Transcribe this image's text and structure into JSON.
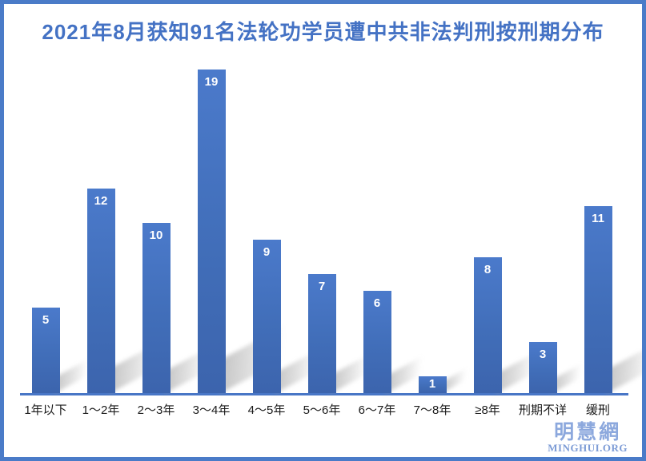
{
  "title": "2021年8月获知91名法轮功学员遭中共非法判刑按刑期分布",
  "watermark": {
    "chinese": "明慧網",
    "english": "MINGHUI.ORG"
  },
  "colors": {
    "border": "#4a7bc8",
    "title_text": "#4472c4",
    "bar_top": "#4b7acb",
    "bar_bottom": "#3c64ad",
    "axis_line": "#4876c6",
    "value_label_text": "#ffffff",
    "category_label_text": "#1a1a1a",
    "watermark_chinese": "#8ca8dd",
    "watermark_english": "#7d9cd6",
    "shadow": "#949494"
  },
  "chart_data": {
    "type": "bar",
    "title": "2021年8月获知91名法轮功学员遭中共非法判刑按刑期分布",
    "categories": [
      "1年以下",
      "1～2年",
      "2～3年",
      "3～4年",
      "4～5年",
      "5～6年",
      "6～7年",
      "7～8年",
      "≥8年",
      "刑期不详",
      "缓刑"
    ],
    "values": [
      5,
      12,
      10,
      19,
      9,
      7,
      6,
      1,
      8,
      3,
      11
    ],
    "total": 91,
    "xlabel": "",
    "ylabel": "",
    "ylim": [
      0,
      20
    ],
    "grid": false,
    "legend": false,
    "value_labels": "inside-top, white bold",
    "style": "3d-perspective-shadow, blue gradient bars"
  }
}
